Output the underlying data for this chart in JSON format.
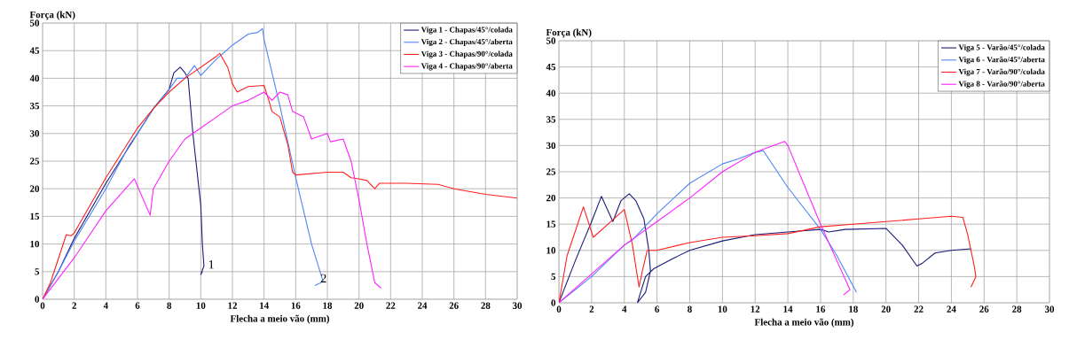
{
  "chart_data": [
    {
      "type": "line",
      "xlabel": "Flecha a meio vão (mm)",
      "ylabel": "Força (kN)",
      "xlim": [
        0,
        30
      ],
      "ylim": [
        0,
        50
      ],
      "xticks": [
        0,
        2,
        4,
        6,
        8,
        10,
        12,
        14,
        16,
        18,
        20,
        22,
        24,
        26,
        28,
        30
      ],
      "yticks": [
        0,
        5,
        10,
        15,
        20,
        25,
        30,
        35,
        40,
        45,
        50
      ],
      "grid": true,
      "legend": "top right",
      "annotations": [
        "1",
        "2"
      ],
      "series": [
        {
          "name": "Viga 1 - Chapas/45°/colada",
          "color": "#1a1a7a",
          "x": [
            0,
            1,
            2,
            4,
            6,
            7,
            8,
            8.3,
            8.7,
            9,
            9.2,
            9.5,
            10,
            10.1,
            10.2,
            10,
            10.1
          ],
          "values": [
            0,
            5,
            11,
            21,
            30,
            34.5,
            38,
            41,
            42,
            41,
            40,
            30,
            17,
            10,
            6,
            4.5,
            5
          ]
        },
        {
          "name": "Viga 2 - Chapas/45°/aberta",
          "color": "#4f86f7",
          "x": [
            0,
            1,
            2,
            4,
            5.5,
            6,
            7,
            8,
            8.5,
            9,
            9.6,
            10,
            10.5,
            11,
            12,
            13,
            13.6,
            13.9,
            14,
            15,
            16,
            17,
            17.7,
            17.6,
            17.2
          ],
          "values": [
            0,
            5,
            10.5,
            20,
            28,
            30,
            34.5,
            38,
            40,
            40,
            42.3,
            40.5,
            42,
            43.5,
            46,
            48,
            48.3,
            49,
            47,
            35,
            22,
            10,
            3.5,
            3,
            2.5
          ]
        },
        {
          "name": "Viga 3 - Chapas/90°/colada",
          "color": "#ff2020",
          "x": [
            0,
            0.5,
            1.5,
            1.8,
            2,
            4,
            6,
            7,
            8,
            9,
            10,
            11,
            11.2,
            11.7,
            12,
            12.3,
            13,
            14,
            14.3,
            14.5,
            15,
            15.5,
            15.8,
            16,
            18,
            19,
            19.5,
            20,
            20.5,
            21,
            21.3,
            23,
            25,
            26,
            28,
            30
          ],
          "values": [
            0,
            3,
            11.7,
            11.5,
            12,
            22,
            31,
            34.5,
            37.5,
            40,
            42,
            44,
            44.5,
            42,
            39,
            37.5,
            38.5,
            38.7,
            36,
            34,
            33,
            28,
            23,
            22.5,
            23,
            23,
            22,
            21.8,
            21.5,
            20,
            21,
            21,
            20.8,
            20,
            19,
            18.3
          ]
        },
        {
          "name": "Viga 4 - Chapas/90°/aberta",
          "color": "#ff22ff",
          "x": [
            0,
            2,
            4,
            5.8,
            6.8,
            7,
            8,
            9,
            10,
            11,
            12,
            13,
            14,
            14.5,
            15,
            15.5,
            15.8,
            16.5,
            17,
            18,
            18.2,
            19,
            19.5,
            20,
            20.5,
            21,
            21.4
          ],
          "values": [
            0,
            7.5,
            16,
            21.8,
            15.2,
            20,
            25,
            29,
            31,
            33,
            35,
            36,
            37.5,
            36,
            37.5,
            37,
            34,
            33,
            29,
            30,
            28.5,
            29,
            25,
            18,
            10,
            3,
            2
          ]
        }
      ]
    },
    {
      "type": "line",
      "xlabel": "Flecha a meio vão (mm)",
      "ylabel": "Força (kN)",
      "xlim": [
        0,
        30
      ],
      "ylim": [
        0,
        50
      ],
      "xticks": [
        0,
        2,
        4,
        6,
        8,
        10,
        12,
        14,
        16,
        18,
        20,
        22,
        24,
        26,
        28,
        30
      ],
      "yticks": [
        0,
        5,
        10,
        15,
        20,
        25,
        30,
        35,
        40,
        45,
        50
      ],
      "grid": true,
      "legend": "top right",
      "series": [
        {
          "name": "Viga 5 - Varão/45°/colada",
          "color": "#1a1a7a",
          "x": [
            0,
            1,
            2,
            2.6,
            3.3,
            3.8,
            4.3,
            4.7,
            5.2,
            5.5,
            5.6,
            5.3,
            4.8,
            5.3,
            5.8,
            7,
            8,
            10,
            12,
            14,
            16,
            16.5,
            17.5,
            20,
            21,
            21.9,
            22.2,
            23,
            24,
            25.2
          ],
          "values": [
            0,
            8,
            15.5,
            20.3,
            15.5,
            19.5,
            20.8,
            19.5,
            16,
            10,
            6,
            2,
            0,
            5,
            6.5,
            8.5,
            10,
            11.8,
            13,
            13.5,
            14,
            13.5,
            14,
            14.2,
            11,
            7,
            7.5,
            9.5,
            10,
            10.3
          ]
        },
        {
          "name": "Viga 6 - Varão/45°/aberta",
          "color": "#4f86f7",
          "x": [
            0,
            2,
            4,
            4.5,
            6,
            8,
            10,
            11,
            12,
            12.5,
            14,
            16,
            17,
            18.2
          ],
          "values": [
            0,
            5,
            11,
            12,
            17,
            22.8,
            26.5,
            27.5,
            28.7,
            29,
            22,
            14,
            9,
            2
          ]
        },
        {
          "name": "Viga 7 - Varão/90°/colada",
          "color": "#ff2020",
          "x": [
            0,
            0.5,
            1.5,
            2.1,
            3,
            4,
            4.5,
            4.9,
            5.1,
            5.4,
            6,
            8,
            10,
            12,
            14,
            16,
            18,
            20,
            22,
            24,
            24.7,
            25,
            25.4,
            25.5,
            25.2
          ],
          "values": [
            0,
            9,
            18.3,
            12.5,
            15,
            17.8,
            11,
            3,
            6,
            10,
            10,
            11.5,
            12.5,
            12.8,
            13.2,
            14.5,
            15,
            15.5,
            16,
            16.5,
            16.3,
            13,
            7,
            5,
            3
          ]
        },
        {
          "name": "Viga 8 - Varão/90°/aberta",
          "color": "#ff22ff",
          "x": [
            0,
            2,
            4,
            6,
            8,
            10,
            12,
            13.8,
            14,
            16,
            17,
            17.8,
            17.4
          ],
          "values": [
            0,
            5.5,
            11,
            15.5,
            20,
            25,
            28.7,
            30.8,
            30,
            15,
            8,
            2.5,
            1.5
          ]
        }
      ]
    }
  ]
}
